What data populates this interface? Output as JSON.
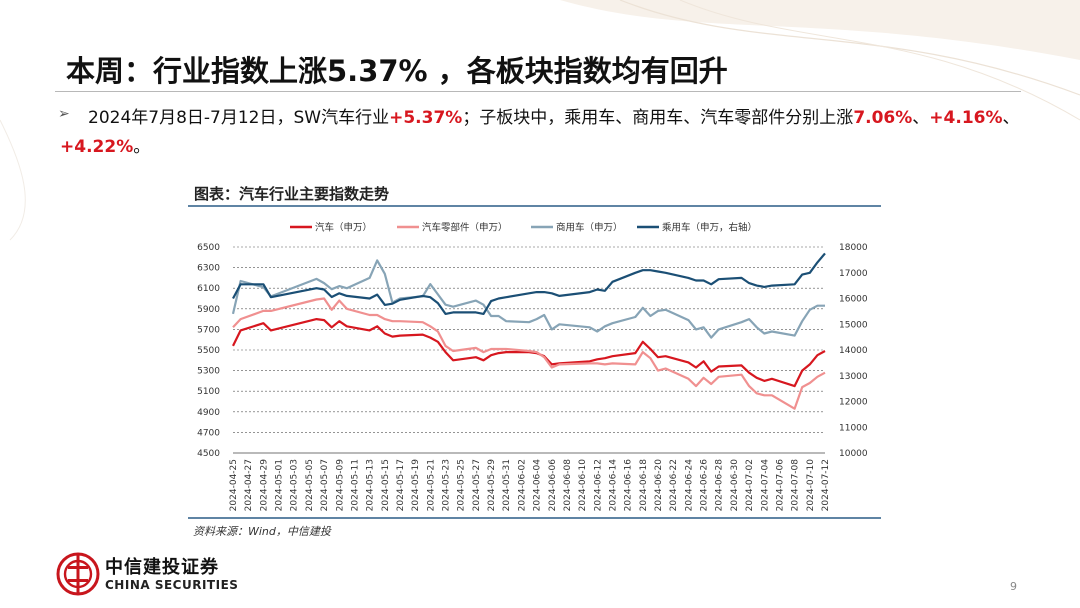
{
  "slide": {
    "title": "本周：行业指数上涨5.37% ，各板块指数均有回升",
    "summary": {
      "t1": "2024年7月8日-7月12日，SW汽车行业",
      "v1": "+5.37%",
      "t2": "；子板块中，乘用车、商用车、汽车零部件分别上涨",
      "v2": "7.06%",
      "t3": "、",
      "v3": "+4.16%",
      "t4": "、",
      "v4": "+4.22%",
      "t5": "。"
    },
    "chart_title": "图表：汽车行业主要指数走势",
    "source": "资料来源：Wind，中信建投",
    "logo_cn": "中信建投证券",
    "logo_en": "CHINA SECURITIES",
    "page_number": "9"
  },
  "colors": {
    "auto": "#d7171f",
    "parts": "#f09090",
    "commercial": "#87a4b6",
    "passenger": "#1b4f75",
    "highlight": "#d7171f"
  },
  "chart_data": {
    "type": "line",
    "title": "图表：汽车行业主要指数走势",
    "x_tick_labels": [
      "2024-04-25",
      "2024-04-27",
      "2024-04-29",
      "2024-05-01",
      "2024-05-03",
      "2024-05-05",
      "2024-05-07",
      "2024-05-09",
      "2024-05-11",
      "2024-05-13",
      "2024-05-15",
      "2024-05-17",
      "2024-05-19",
      "2024-05-21",
      "2024-05-23",
      "2024-05-25",
      "2024-05-27",
      "2024-05-29",
      "2024-05-31",
      "2024-06-02",
      "2024-06-04",
      "2024-06-06",
      "2024-06-08",
      "2024-06-10",
      "2024-06-12",
      "2024-06-14",
      "2024-06-16",
      "2024-06-18",
      "2024-06-20",
      "2024-06-22",
      "2024-06-24",
      "2024-06-26",
      "2024-06-28",
      "2024-06-30",
      "2024-07-02",
      "2024-07-04",
      "2024-07-06",
      "2024-07-08",
      "2024-07-10",
      "2024-07-12"
    ],
    "x_range": [
      "2024-04-25",
      "2024-07-12"
    ],
    "y_left": {
      "min": 4500,
      "max": 6500,
      "ticks": [
        4500,
        4700,
        4900,
        5100,
        5300,
        5500,
        5700,
        5900,
        6100,
        6300,
        6500
      ]
    },
    "y_right": {
      "min": 10000,
      "max": 18000,
      "ticks": [
        10000,
        11000,
        12000,
        13000,
        14000,
        15000,
        16000,
        17000,
        18000
      ]
    },
    "grid": "horizontal dashed",
    "legend_position": "top",
    "series": [
      {
        "name": "汽车（申万）",
        "axis": "left",
        "color": "#d7171f",
        "points": [
          [
            "2024-04-25",
            5540
          ],
          [
            "2024-04-26",
            5690
          ],
          [
            "2024-04-29",
            5760
          ],
          [
            "2024-04-30",
            5690
          ],
          [
            "2024-05-06",
            5800
          ],
          [
            "2024-05-07",
            5790
          ],
          [
            "2024-05-08",
            5720
          ],
          [
            "2024-05-09",
            5780
          ],
          [
            "2024-05-10",
            5730
          ],
          [
            "2024-05-13",
            5690
          ],
          [
            "2024-05-14",
            5730
          ],
          [
            "2024-05-15",
            5660
          ],
          [
            "2024-05-16",
            5630
          ],
          [
            "2024-05-17",
            5640
          ],
          [
            "2024-05-20",
            5650
          ],
          [
            "2024-05-21",
            5620
          ],
          [
            "2024-05-22",
            5580
          ],
          [
            "2024-05-23",
            5480
          ],
          [
            "2024-05-24",
            5400
          ],
          [
            "2024-05-27",
            5430
          ],
          [
            "2024-05-28",
            5400
          ],
          [
            "2024-05-29",
            5450
          ],
          [
            "2024-05-30",
            5470
          ],
          [
            "2024-05-31",
            5480
          ],
          [
            "2024-06-03",
            5480
          ],
          [
            "2024-06-04",
            5470
          ],
          [
            "2024-06-05",
            5440
          ],
          [
            "2024-06-06",
            5360
          ],
          [
            "2024-06-07",
            5370
          ],
          [
            "2024-06-11",
            5390
          ],
          [
            "2024-06-12",
            5410
          ],
          [
            "2024-06-13",
            5420
          ],
          [
            "2024-06-14",
            5440
          ],
          [
            "2024-06-17",
            5470
          ],
          [
            "2024-06-18",
            5580
          ],
          [
            "2024-06-19",
            5510
          ],
          [
            "2024-06-20",
            5430
          ],
          [
            "2024-06-21",
            5440
          ],
          [
            "2024-06-24",
            5380
          ],
          [
            "2024-06-25",
            5330
          ],
          [
            "2024-06-26",
            5390
          ],
          [
            "2024-06-27",
            5290
          ],
          [
            "2024-06-28",
            5340
          ],
          [
            "2024-07-01",
            5350
          ],
          [
            "2024-07-02",
            5280
          ],
          [
            "2024-07-03",
            5230
          ],
          [
            "2024-07-04",
            5200
          ],
          [
            "2024-07-05",
            5220
          ],
          [
            "2024-07-08",
            5150
          ],
          [
            "2024-07-09",
            5300
          ],
          [
            "2024-07-10",
            5360
          ],
          [
            "2024-07-11",
            5450
          ],
          [
            "2024-07-12",
            5490
          ]
        ]
      },
      {
        "name": "汽车零部件（申万）",
        "axis": "left",
        "color": "#f09090",
        "points": [
          [
            "2024-04-25",
            5720
          ],
          [
            "2024-04-26",
            5800
          ],
          [
            "2024-04-29",
            5880
          ],
          [
            "2024-04-30",
            5880
          ],
          [
            "2024-05-06",
            5990
          ],
          [
            "2024-05-07",
            6000
          ],
          [
            "2024-05-08",
            5890
          ],
          [
            "2024-05-09",
            5980
          ],
          [
            "2024-05-10",
            5900
          ],
          [
            "2024-05-13",
            5840
          ],
          [
            "2024-05-14",
            5840
          ],
          [
            "2024-05-15",
            5800
          ],
          [
            "2024-05-16",
            5780
          ],
          [
            "2024-05-17",
            5780
          ],
          [
            "2024-05-20",
            5770
          ],
          [
            "2024-05-21",
            5730
          ],
          [
            "2024-05-22",
            5680
          ],
          [
            "2024-05-23",
            5540
          ],
          [
            "2024-05-24",
            5490
          ],
          [
            "2024-05-27",
            5520
          ],
          [
            "2024-05-28",
            5480
          ],
          [
            "2024-05-29",
            5510
          ],
          [
            "2024-05-30",
            5510
          ],
          [
            "2024-05-31",
            5510
          ],
          [
            "2024-06-03",
            5490
          ],
          [
            "2024-06-04",
            5480
          ],
          [
            "2024-06-05",
            5430
          ],
          [
            "2024-06-06",
            5330
          ],
          [
            "2024-06-07",
            5360
          ],
          [
            "2024-06-11",
            5370
          ],
          [
            "2024-06-12",
            5370
          ],
          [
            "2024-06-13",
            5360
          ],
          [
            "2024-06-14",
            5370
          ],
          [
            "2024-06-17",
            5360
          ],
          [
            "2024-06-18",
            5480
          ],
          [
            "2024-06-19",
            5420
          ],
          [
            "2024-06-20",
            5300
          ],
          [
            "2024-06-21",
            5320
          ],
          [
            "2024-06-24",
            5220
          ],
          [
            "2024-06-25",
            5150
          ],
          [
            "2024-06-26",
            5230
          ],
          [
            "2024-06-27",
            5170
          ],
          [
            "2024-06-28",
            5240
          ],
          [
            "2024-07-01",
            5260
          ],
          [
            "2024-07-02",
            5150
          ],
          [
            "2024-07-03",
            5080
          ],
          [
            "2024-07-04",
            5060
          ],
          [
            "2024-07-05",
            5060
          ],
          [
            "2024-07-08",
            4930
          ],
          [
            "2024-07-09",
            5140
          ],
          [
            "2024-07-10",
            5180
          ],
          [
            "2024-07-11",
            5240
          ],
          [
            "2024-07-12",
            5280
          ]
        ]
      },
      {
        "name": "商用车（申万）",
        "axis": "left",
        "color": "#87a4b6",
        "points": [
          [
            "2024-04-25",
            5850
          ],
          [
            "2024-04-26",
            6170
          ],
          [
            "2024-04-29",
            6110
          ],
          [
            "2024-04-30",
            6020
          ],
          [
            "2024-05-06",
            6190
          ],
          [
            "2024-05-07",
            6150
          ],
          [
            "2024-05-08",
            6090
          ],
          [
            "2024-05-09",
            6120
          ],
          [
            "2024-05-10",
            6100
          ],
          [
            "2024-05-13",
            6200
          ],
          [
            "2024-05-14",
            6370
          ],
          [
            "2024-05-15",
            6240
          ],
          [
            "2024-05-16",
            5960
          ],
          [
            "2024-05-17",
            6000
          ],
          [
            "2024-05-20",
            6020
          ],
          [
            "2024-05-21",
            6140
          ],
          [
            "2024-05-22",
            6040
          ],
          [
            "2024-05-23",
            5940
          ],
          [
            "2024-05-24",
            5920
          ],
          [
            "2024-05-27",
            5980
          ],
          [
            "2024-05-28",
            5940
          ],
          [
            "2024-05-29",
            5830
          ],
          [
            "2024-05-30",
            5830
          ],
          [
            "2024-05-31",
            5780
          ],
          [
            "2024-06-03",
            5770
          ],
          [
            "2024-06-04",
            5800
          ],
          [
            "2024-06-05",
            5840
          ],
          [
            "2024-06-06",
            5700
          ],
          [
            "2024-06-07",
            5750
          ],
          [
            "2024-06-11",
            5720
          ],
          [
            "2024-06-12",
            5680
          ],
          [
            "2024-06-13",
            5730
          ],
          [
            "2024-06-14",
            5760
          ],
          [
            "2024-06-17",
            5820
          ],
          [
            "2024-06-18",
            5910
          ],
          [
            "2024-06-19",
            5830
          ],
          [
            "2024-06-20",
            5880
          ],
          [
            "2024-06-21",
            5890
          ],
          [
            "2024-06-24",
            5790
          ],
          [
            "2024-06-25",
            5700
          ],
          [
            "2024-06-26",
            5720
          ],
          [
            "2024-06-27",
            5620
          ],
          [
            "2024-06-28",
            5700
          ],
          [
            "2024-07-01",
            5770
          ],
          [
            "2024-07-02",
            5800
          ],
          [
            "2024-07-03",
            5720
          ],
          [
            "2024-07-04",
            5660
          ],
          [
            "2024-07-05",
            5680
          ],
          [
            "2024-07-08",
            5640
          ],
          [
            "2024-07-09",
            5780
          ],
          [
            "2024-07-10",
            5890
          ],
          [
            "2024-07-11",
            5930
          ],
          [
            "2024-07-12",
            5930
          ]
        ]
      },
      {
        "name": "乘用车（申万，右轴）",
        "axis": "right",
        "color": "#1b4f75",
        "points": [
          [
            "2024-04-25",
            16000
          ],
          [
            "2024-04-26",
            16550
          ],
          [
            "2024-04-29",
            16550
          ],
          [
            "2024-04-30",
            16050
          ],
          [
            "2024-05-06",
            16400
          ],
          [
            "2024-05-07",
            16350
          ],
          [
            "2024-05-08",
            16060
          ],
          [
            "2024-05-09",
            16200
          ],
          [
            "2024-05-10",
            16100
          ],
          [
            "2024-05-13",
            16000
          ],
          [
            "2024-05-14",
            16150
          ],
          [
            "2024-05-15",
            15750
          ],
          [
            "2024-05-16",
            15800
          ],
          [
            "2024-05-17",
            15950
          ],
          [
            "2024-05-20",
            16100
          ],
          [
            "2024-05-21",
            16050
          ],
          [
            "2024-05-22",
            15820
          ],
          [
            "2024-05-23",
            15400
          ],
          [
            "2024-05-24",
            15460
          ],
          [
            "2024-05-27",
            15460
          ],
          [
            "2024-05-28",
            15400
          ],
          [
            "2024-05-29",
            15900
          ],
          [
            "2024-05-30",
            16000
          ],
          [
            "2024-05-31",
            16050
          ],
          [
            "2024-06-03",
            16200
          ],
          [
            "2024-06-04",
            16250
          ],
          [
            "2024-06-05",
            16250
          ],
          [
            "2024-06-06",
            16200
          ],
          [
            "2024-06-07",
            16100
          ],
          [
            "2024-06-11",
            16250
          ],
          [
            "2024-06-12",
            16350
          ],
          [
            "2024-06-13",
            16300
          ],
          [
            "2024-06-14",
            16650
          ],
          [
            "2024-06-17",
            17000
          ],
          [
            "2024-06-18",
            17100
          ],
          [
            "2024-06-19",
            17100
          ],
          [
            "2024-06-20",
            17050
          ],
          [
            "2024-06-21",
            17000
          ],
          [
            "2024-06-24",
            16800
          ],
          [
            "2024-06-25",
            16700
          ],
          [
            "2024-06-26",
            16700
          ],
          [
            "2024-06-27",
            16550
          ],
          [
            "2024-06-28",
            16750
          ],
          [
            "2024-07-01",
            16800
          ],
          [
            "2024-07-02",
            16600
          ],
          [
            "2024-07-03",
            16500
          ],
          [
            "2024-07-04",
            16450
          ],
          [
            "2024-07-05",
            16500
          ],
          [
            "2024-07-08",
            16550
          ],
          [
            "2024-07-09",
            16930
          ],
          [
            "2024-07-10",
            17000
          ],
          [
            "2024-07-11",
            17400
          ],
          [
            "2024-07-12",
            17750
          ]
        ]
      }
    ]
  }
}
